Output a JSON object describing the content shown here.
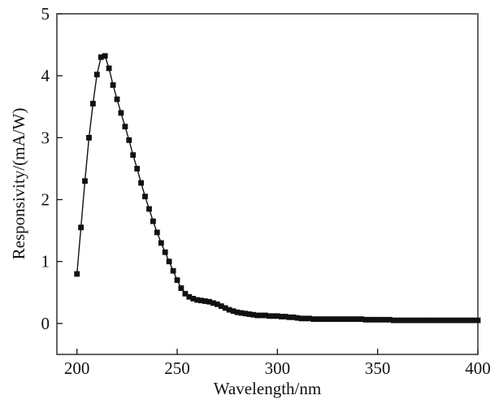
{
  "chart_data": {
    "type": "line",
    "title": "",
    "xlabel": "Wavelength/nm",
    "ylabel": "Responsivity/(mA/W)",
    "xlim": [
      190,
      400
    ],
    "ylim": [
      -0.5,
      5
    ],
    "xticks": [
      200,
      250,
      300,
      350,
      400
    ],
    "yticks": [
      0,
      1,
      2,
      3,
      4,
      5
    ],
    "grid": false,
    "legend": "none",
    "marker": "square",
    "color": "#111111",
    "series": [
      {
        "x": [
          200,
          202,
          204,
          206,
          208,
          210,
          212,
          214,
          216,
          218,
          220,
          222,
          224,
          226,
          228,
          230,
          232,
          234,
          236,
          238,
          240,
          242,
          244,
          246,
          248,
          250,
          252,
          254,
          256,
          258,
          260,
          262,
          264,
          266,
          268,
          270,
          272,
          274,
          276,
          278,
          280,
          282,
          284,
          286,
          288,
          290,
          292,
          294,
          296,
          298,
          300,
          302,
          304,
          306,
          308,
          310,
          312,
          314,
          316,
          318,
          320,
          322,
          324,
          326,
          328,
          330,
          332,
          334,
          336,
          338,
          340,
          342,
          344,
          346,
          348,
          350,
          352,
          354,
          356,
          358,
          360,
          362,
          364,
          366,
          368,
          370,
          372,
          374,
          376,
          378,
          380,
          382,
          384,
          386,
          388,
          390,
          392,
          394,
          396,
          398,
          400
        ],
        "y": [
          0.8,
          1.55,
          2.3,
          3.0,
          3.55,
          4.02,
          4.3,
          4.32,
          4.12,
          3.85,
          3.62,
          3.4,
          3.18,
          2.96,
          2.72,
          2.5,
          2.27,
          2.05,
          1.85,
          1.65,
          1.47,
          1.3,
          1.15,
          1.0,
          0.85,
          0.7,
          0.57,
          0.48,
          0.43,
          0.4,
          0.38,
          0.37,
          0.36,
          0.35,
          0.33,
          0.31,
          0.28,
          0.25,
          0.22,
          0.2,
          0.18,
          0.17,
          0.16,
          0.15,
          0.14,
          0.13,
          0.13,
          0.13,
          0.12,
          0.12,
          0.12,
          0.11,
          0.11,
          0.1,
          0.1,
          0.09,
          0.08,
          0.08,
          0.08,
          0.07,
          0.07,
          0.07,
          0.07,
          0.07,
          0.07,
          0.07,
          0.07,
          0.07,
          0.07,
          0.07,
          0.07,
          0.07,
          0.06,
          0.06,
          0.06,
          0.06,
          0.06,
          0.06,
          0.06,
          0.05,
          0.05,
          0.05,
          0.05,
          0.05,
          0.05,
          0.05,
          0.05,
          0.05,
          0.05,
          0.05,
          0.05,
          0.05,
          0.05,
          0.05,
          0.05,
          0.05,
          0.05,
          0.05,
          0.05,
          0.05,
          0.05
        ]
      }
    ]
  }
}
